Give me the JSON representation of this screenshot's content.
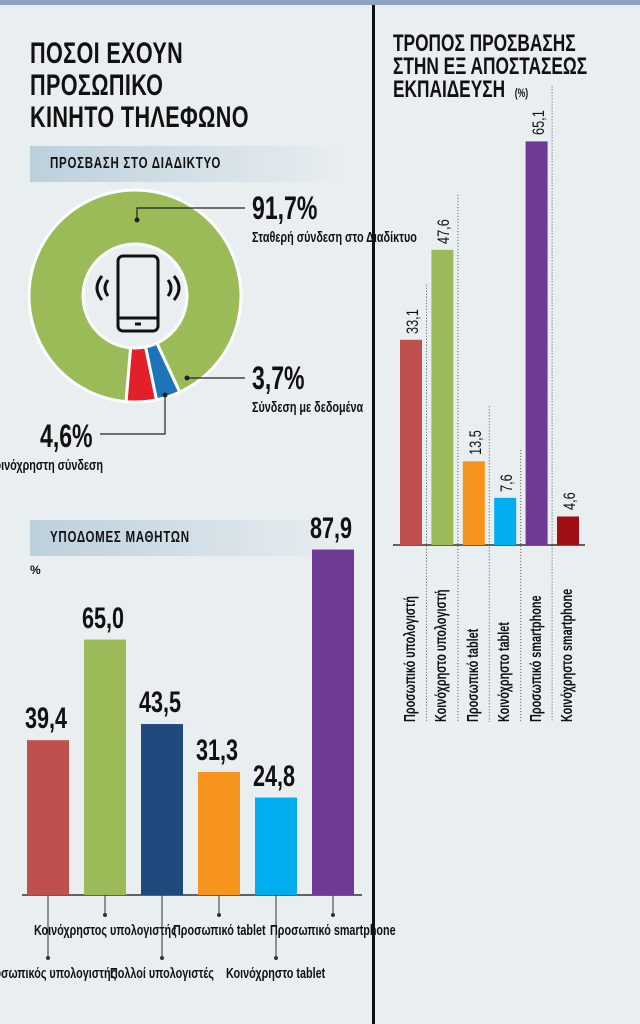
{
  "left_title": [
    "ΠΟΣΟΙ ΕΧΟΥΝ",
    "ΠΡΟΣΩΠΙΚΟ",
    "ΚΙΝΗΤΟ ΤΗΛΕΦΩΝΟ"
  ],
  "right_title": [
    "ΤΡΟΠΟΣ ΠΡΟΣΒΑΣΗΣ",
    "ΣΤΗΝ ΕΞ ΑΠΟΣΤΑΣΕΩΣ",
    "ΕΚΠΑΙΔΕΥΣΗ"
  ],
  "right_unit": "(%)",
  "colors": {
    "background": "#e9eef1",
    "top_bar": "#8ea3bd"
  },
  "chart_data": [
    {
      "type": "pie",
      "title": "ΠΡΟΣΒΑΣΗ ΣΤΟ ΔΙΑΔΙΚΤΥΟ",
      "donut": true,
      "center_icon": "smartphone-vibrate-icon",
      "slices": [
        {
          "value": 91.7,
          "display": "91,7%",
          "label": [
            "Σταθερή σύνδεση",
            "στο Διαδίκτυο"
          ],
          "color": "#9bbb59"
        },
        {
          "value": 3.7,
          "display": "3,7%",
          "label": [
            "Σύνδεση",
            "με δεδομένα"
          ],
          "color": "#1f74b8"
        },
        {
          "value": 4.6,
          "display": "4,6%",
          "label": [
            "Κοινόχρηστη",
            "σύνδεση"
          ],
          "color": "#e3202a"
        }
      ]
    },
    {
      "type": "bar",
      "title": "ΥΠΟΔΟΜΕΣ ΜΑΘΗΤΩΝ",
      "ylabel": "%",
      "categories": [
        [
          "Προσωπικός",
          "υπολογιστής"
        ],
        [
          "Κοινόχρηστος",
          "υπολογιστής"
        ],
        [
          "Πολλοί",
          "υπολογιστές"
        ],
        [
          "Προσωπικό",
          "tablet"
        ],
        [
          "Κοινόχρηστο",
          "tablet"
        ],
        [
          "Προσωπικό",
          "smartphone"
        ]
      ],
      "values": [
        39.4,
        65.0,
        43.5,
        31.3,
        24.8,
        87.9
      ],
      "labels": [
        "39,4",
        "65,0",
        "43,5",
        "31,3",
        "24,8",
        "87,9"
      ],
      "colors": [
        "#c0504d",
        "#9bbb59",
        "#1f497d",
        "#f7941d",
        "#00aeef",
        "#6f3996"
      ]
    },
    {
      "type": "bar",
      "categories": [
        "Προσωπικό υπολογιστή",
        "Κοινόχρηστο υπολογιστή",
        "Προσωπικό tablet",
        "Κοινόχρηστο tablet",
        "Προσωπικό smartphone",
        "Κοινόχρηστο smartphone"
      ],
      "values": [
        33.1,
        47.6,
        13.5,
        7.6,
        65.1,
        4.6
      ],
      "labels": [
        "33,1",
        "47,6",
        "13,5",
        "7,6",
        "65,1",
        "4,6"
      ],
      "colors": [
        "#c0504d",
        "#9bbb59",
        "#f7941d",
        "#00aeef",
        "#6f3996",
        "#a00d12"
      ]
    }
  ]
}
